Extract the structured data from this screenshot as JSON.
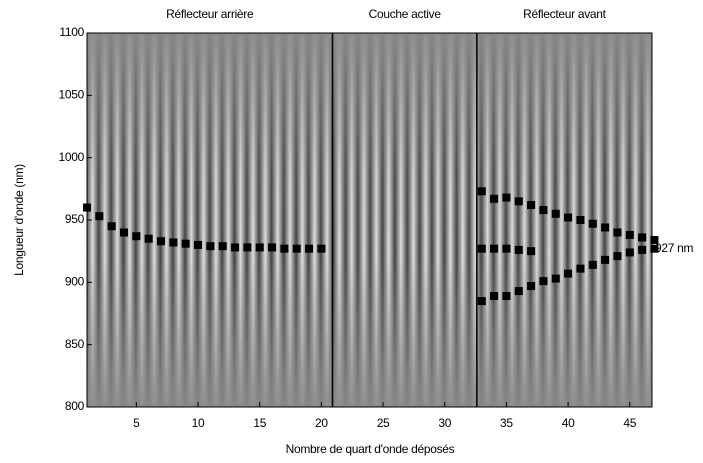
{
  "chart_data": {
    "type": "scatter",
    "x_label": "Nombre de quart d'onde déposés",
    "y_label": "Longueur d'onde (nm)",
    "xlim": [
      1,
      46.8
    ],
    "ylim": [
      800,
      1100
    ],
    "xticks": [
      5,
      10,
      15,
      20,
      25,
      30,
      35,
      40,
      45
    ],
    "yticks": [
      800,
      850,
      900,
      950,
      1000,
      1050,
      1100
    ],
    "regions": [
      "Réflecteur arrière",
      "Couche active",
      "Réflecteur avant"
    ],
    "boundaries": [
      20.9,
      32.6
    ],
    "annotation": {
      "text": "927 nm",
      "value": 927
    },
    "series": [
      {
        "color": "#000000",
        "x": [
          1,
          2,
          3,
          4,
          5,
          6,
          7,
          8,
          9,
          10,
          11,
          12,
          13,
          14,
          15,
          16,
          17,
          18,
          19,
          20
        ],
        "values": [
          960,
          953,
          945,
          940,
          937,
          935,
          933,
          932,
          931,
          930,
          929,
          929,
          928,
          928,
          928,
          928,
          927,
          927,
          927,
          927
        ]
      },
      {
        "color": "#000000",
        "x": [
          33,
          34,
          35,
          36,
          37,
          38,
          39,
          40,
          41,
          42,
          43,
          44,
          45,
          46,
          47
        ],
        "values": [
          973,
          967,
          968,
          965,
          962,
          958,
          955,
          952,
          950,
          947,
          944,
          940,
          938,
          936,
          934
        ]
      },
      {
        "color": "#000000",
        "x": [
          33,
          34,
          35,
          36,
          37
        ],
        "values": [
          927,
          927,
          927,
          926,
          925
        ]
      },
      {
        "color": "#000000",
        "x": [
          33,
          34,
          35,
          36,
          37,
          38,
          39,
          40,
          41,
          42,
          43,
          44,
          45,
          46,
          47
        ],
        "values": [
          885,
          889,
          889,
          893,
          897,
          901,
          903,
          907,
          911,
          914,
          918,
          921,
          924,
          926,
          927
        ]
      }
    ]
  }
}
